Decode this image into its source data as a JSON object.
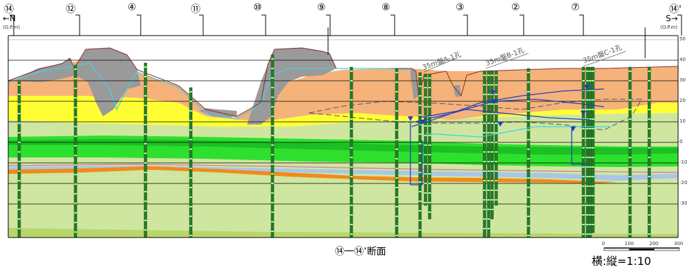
{
  "section_markers": [
    "⑭",
    "⑫",
    "④",
    "⑪",
    "⑩",
    "⑨",
    "⑧",
    "③",
    "②",
    "⑦",
    "⑭'"
  ],
  "direction": {
    "left": "←N",
    "right": "S→"
  },
  "axis_unit_left": "(O.P.m)",
  "axis_unit_right": "(O.P.m)",
  "elevation_ticks": [
    "50",
    "40",
    "30",
    "20",
    "10",
    "0",
    "-10",
    "-20",
    "-30"
  ],
  "boreholes": {
    "a": "35m盤A-1孔",
    "b": "35m盤B-1孔",
    "c": "35m盤C-1孔"
  },
  "caption": "⑭一⑭’断面",
  "scale": {
    "ticks": [
      "0",
      "100",
      "200",
      "300"
    ],
    "ratio": "横:縦=1:10"
  },
  "colors": {
    "rock_gray": "#9a9a9a",
    "orange_layer": "#f5b27a",
    "yellow_layer": "#ffff33",
    "light_green": "#cfe6a0",
    "bright_green": "#22d82a",
    "deep_orange": "#f28a1a",
    "blue_line": "#1e3fbf",
    "cyan_line": "#3fd2e6"
  }
}
